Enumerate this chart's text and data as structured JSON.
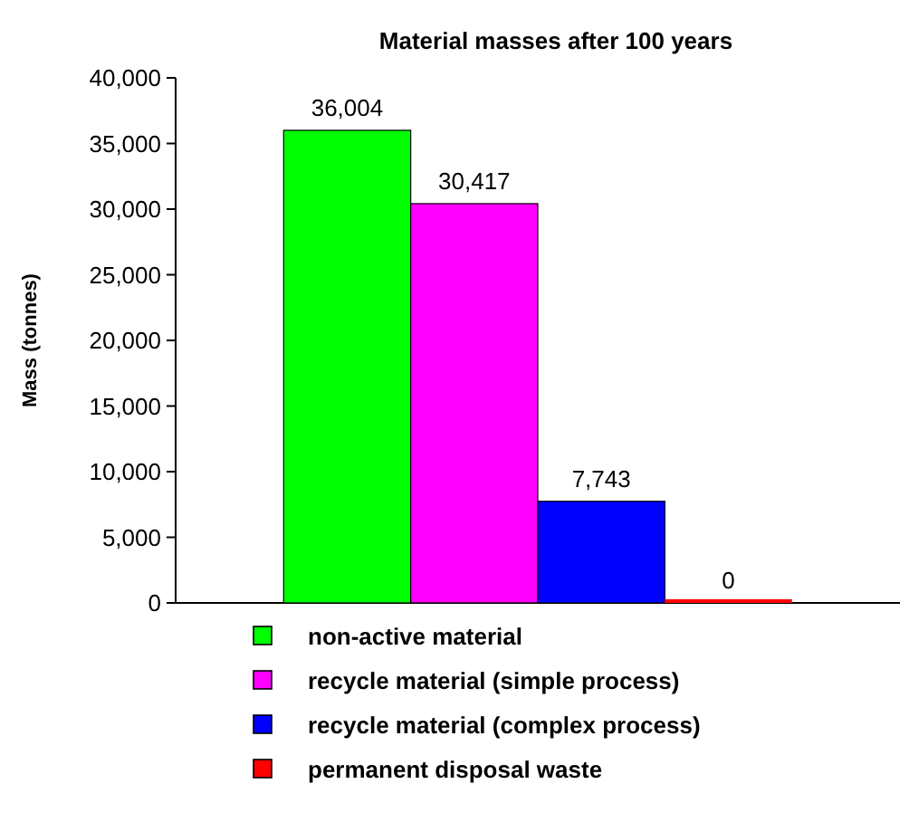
{
  "chart_data": {
    "type": "bar",
    "title": "Material masses after 100 years",
    "ylabel": "Mass (tonnes)",
    "categories": [
      null
    ],
    "series": [
      {
        "name": "non-active material",
        "color": "#00ff00",
        "values": [
          36004
        ],
        "value_labels": [
          "36,004"
        ]
      },
      {
        "name": "recycle material (simple process)",
        "color": "#ff00ff",
        "values": [
          30417
        ],
        "value_labels": [
          "30,417"
        ]
      },
      {
        "name": "recycle material (complex process)",
        "color": "#0000ff",
        "values": [
          7743
        ],
        "value_labels": [
          "7,743"
        ]
      },
      {
        "name": "permanent disposal waste",
        "color": "#ff0000",
        "values": [
          0
        ],
        "value_labels": [
          "0"
        ]
      }
    ],
    "ylim": [
      0,
      40000
    ],
    "yticks": [
      0,
      {
        "value": 5000,
        "label": "5,000"
      },
      {
        "value": 10000,
        "label": "10,000"
      },
      {
        "value": 15000,
        "label": "15,000"
      },
      {
        "value": 20000,
        "label": "20,000"
      },
      {
        "value": 25000,
        "label": "25,000"
      },
      {
        "value": 30000,
        "label": "30,000"
      },
      {
        "value": 35000,
        "label": "35,000"
      },
      {
        "value": 40000,
        "label": "40,000"
      }
    ],
    "grid": false,
    "legend": "bottom"
  }
}
